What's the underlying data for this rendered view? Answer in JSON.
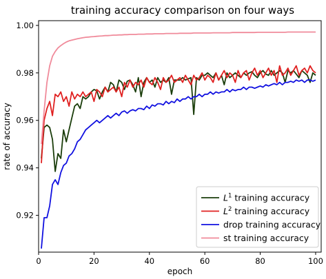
{
  "chart_data": {
    "type": "line",
    "title": "training accuracy comparison on four ways",
    "xlabel": "epoch",
    "ylabel": "rate of accuracy",
    "xlim": [
      0,
      102
    ],
    "ylim": [
      0.9045,
      1.002
    ],
    "xticks": [
      0,
      20,
      40,
      60,
      80,
      100
    ],
    "yticks": [
      0.92,
      0.94,
      0.96,
      0.98,
      1.0
    ],
    "ytick_labels": [
      "0.92",
      "0.94",
      "0.96",
      "0.98",
      "1.00"
    ],
    "grid": false,
    "legend_position": "bottom-right",
    "x": [
      1,
      2,
      3,
      4,
      5,
      6,
      7,
      8,
      9,
      10,
      11,
      12,
      13,
      14,
      15,
      16,
      17,
      18,
      19,
      20,
      21,
      22,
      23,
      24,
      25,
      26,
      27,
      28,
      29,
      30,
      31,
      32,
      33,
      34,
      35,
      36,
      37,
      38,
      39,
      40,
      41,
      42,
      43,
      44,
      45,
      46,
      47,
      48,
      49,
      50,
      51,
      52,
      53,
      54,
      55,
      56,
      57,
      58,
      59,
      60,
      61,
      62,
      63,
      64,
      65,
      66,
      67,
      68,
      69,
      70,
      71,
      72,
      73,
      74,
      75,
      76,
      77,
      78,
      79,
      80,
      81,
      82,
      83,
      84,
      85,
      86,
      87,
      88,
      89,
      90,
      91,
      92,
      93,
      94,
      95,
      96,
      97,
      98,
      99,
      100
    ],
    "series": [
      {
        "name": "L1 training accuracy",
        "name_base": "L",
        "name_sup": "1",
        "name_rest": " training accuracy",
        "color": "#1a3d0a",
        "values": [
          0.944,
          0.957,
          0.958,
          0.957,
          0.952,
          0.9385,
          0.946,
          0.944,
          0.956,
          0.951,
          0.956,
          0.961,
          0.966,
          0.967,
          0.965,
          0.97,
          0.969,
          0.97,
          0.972,
          0.973,
          0.9725,
          0.969,
          0.972,
          0.974,
          0.972,
          0.976,
          0.975,
          0.972,
          0.977,
          0.976,
          0.973,
          0.9765,
          0.977,
          0.975,
          0.972,
          0.978,
          0.97,
          0.976,
          0.978,
          0.976,
          0.977,
          0.974,
          0.978,
          0.976,
          0.977,
          0.976,
          0.978,
          0.971,
          0.977,
          0.977,
          0.977,
          0.978,
          0.977,
          0.9775,
          0.978,
          0.9625,
          0.978,
          0.977,
          0.979,
          0.979,
          0.98,
          0.979,
          0.978,
          0.98,
          0.977,
          0.979,
          0.975,
          0.98,
          0.978,
          0.979,
          0.98,
          0.979,
          0.978,
          0.98,
          0.979,
          0.98,
          0.9805,
          0.979,
          0.978,
          0.98,
          0.981,
          0.9795,
          0.979,
          0.981,
          0.979,
          0.98,
          0.981,
          0.98,
          0.976,
          0.981,
          0.98,
          0.981,
          0.9795,
          0.978,
          0.981,
          0.98,
          0.979,
          0.976,
          0.98,
          0.979
        ]
      },
      {
        "name": "L2 training accuracy",
        "name_base": "L",
        "name_sup": "2",
        "name_rest": " training accuracy",
        "color": "#e02020",
        "values": [
          0.942,
          0.96,
          0.965,
          0.968,
          0.962,
          0.971,
          0.97,
          0.972,
          0.968,
          0.97,
          0.966,
          0.972,
          0.969,
          0.971,
          0.97,
          0.972,
          0.97,
          0.971,
          0.972,
          0.968,
          0.973,
          0.972,
          0.97,
          0.974,
          0.972,
          0.973,
          0.974,
          0.972,
          0.974,
          0.97,
          0.976,
          0.974,
          0.977,
          0.974,
          0.976,
          0.975,
          0.977,
          0.974,
          0.978,
          0.976,
          0.975,
          0.978,
          0.976,
          0.973,
          0.978,
          0.976,
          0.977,
          0.979,
          0.976,
          0.977,
          0.978,
          0.976,
          0.979,
          0.977,
          0.975,
          0.979,
          0.977,
          0.978,
          0.98,
          0.977,
          0.979,
          0.978,
          0.976,
          0.98,
          0.977,
          0.979,
          0.981,
          0.978,
          0.98,
          0.979,
          0.976,
          0.981,
          0.978,
          0.98,
          0.981,
          0.977,
          0.98,
          0.982,
          0.979,
          0.981,
          0.978,
          0.98,
          0.982,
          0.979,
          0.981,
          0.976,
          0.983,
          0.979,
          0.98,
          0.982,
          0.979,
          0.981,
          0.983,
          0.979,
          0.981,
          0.982,
          0.98,
          0.983,
          0.981,
          0.98
        ]
      },
      {
        "name": "drop training accuracy",
        "color": "#1010e0",
        "values": [
          0.906,
          0.919,
          0.919,
          0.924,
          0.933,
          0.935,
          0.933,
          0.938,
          0.941,
          0.942,
          0.945,
          0.946,
          0.948,
          0.951,
          0.952,
          0.954,
          0.956,
          0.957,
          0.958,
          0.959,
          0.96,
          0.959,
          0.96,
          0.961,
          0.962,
          0.961,
          0.962,
          0.963,
          0.962,
          0.9635,
          0.964,
          0.963,
          0.964,
          0.9645,
          0.964,
          0.965,
          0.965,
          0.9645,
          0.966,
          0.965,
          0.9665,
          0.966,
          0.967,
          0.967,
          0.9665,
          0.968,
          0.967,
          0.968,
          0.9675,
          0.969,
          0.968,
          0.969,
          0.969,
          0.97,
          0.969,
          0.97,
          0.97,
          0.971,
          0.97,
          0.971,
          0.971,
          0.972,
          0.971,
          0.972,
          0.9715,
          0.972,
          0.972,
          0.973,
          0.972,
          0.973,
          0.9725,
          0.973,
          0.973,
          0.974,
          0.973,
          0.974,
          0.974,
          0.9735,
          0.974,
          0.9745,
          0.974,
          0.975,
          0.9745,
          0.975,
          0.9755,
          0.975,
          0.976,
          0.975,
          0.976,
          0.976,
          0.9765,
          0.976,
          0.977,
          0.9765,
          0.977,
          0.976,
          0.977,
          0.977,
          0.9765,
          0.977
        ]
      },
      {
        "name": "st training accuracy",
        "color": "#f08a9a",
        "values": [
          0.95,
          0.964,
          0.976,
          0.983,
          0.987,
          0.989,
          0.9905,
          0.9915,
          0.9923,
          0.993,
          0.9935,
          0.9938,
          0.9941,
          0.9944,
          0.9946,
          0.9948,
          0.995,
          0.9951,
          0.9952,
          0.9953,
          0.9954,
          0.9955,
          0.9956,
          0.9957,
          0.9957,
          0.9958,
          0.9959,
          0.9959,
          0.996,
          0.996,
          0.9961,
          0.9961,
          0.9962,
          0.9962,
          0.9962,
          0.9963,
          0.9963,
          0.9963,
          0.9964,
          0.9964,
          0.9964,
          0.9965,
          0.9965,
          0.9965,
          0.9965,
          0.9966,
          0.9966,
          0.9966,
          0.9966,
          0.9966,
          0.9967,
          0.9967,
          0.9967,
          0.9967,
          0.9967,
          0.9968,
          0.9968,
          0.9968,
          0.9968,
          0.9968,
          0.9968,
          0.9968,
          0.9969,
          0.9969,
          0.9969,
          0.9969,
          0.9969,
          0.9969,
          0.9969,
          0.997,
          0.997,
          0.997,
          0.997,
          0.997,
          0.997,
          0.997,
          0.997,
          0.997,
          0.9971,
          0.9971,
          0.9971,
          0.9971,
          0.9971,
          0.9971,
          0.9971,
          0.9971,
          0.9971,
          0.9971,
          0.9971,
          0.9972,
          0.9972,
          0.9972,
          0.9972,
          0.9972,
          0.9972,
          0.9972,
          0.9972,
          0.9972,
          0.9972,
          0.9972
        ]
      }
    ]
  }
}
